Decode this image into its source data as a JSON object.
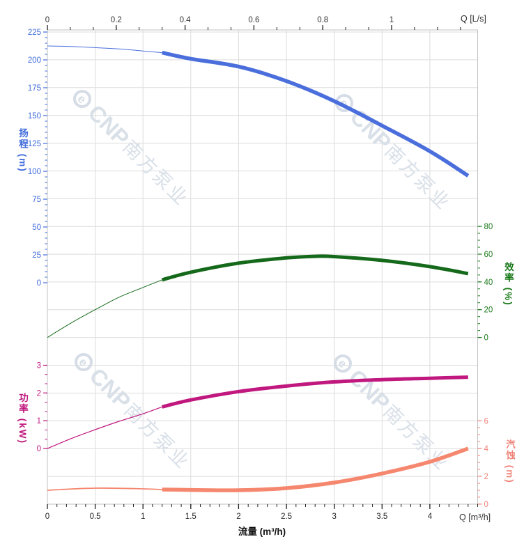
{
  "watermark": {
    "logo": "e",
    "brand": "CNP",
    "brand_cn": "南方泵业"
  },
  "axes": {
    "flow_top": {
      "label": "Q [L/s]",
      "ticks": [
        0,
        0.2,
        0.4,
        0.6,
        0.8,
        1
      ],
      "color": "#333333"
    },
    "flow_bottom": {
      "label": "流量 (m³/h)",
      "corner_label": "Q [m³/h]",
      "ticks": [
        0,
        0.5,
        1,
        1.5,
        2,
        2.5,
        3,
        3.5,
        4
      ],
      "color": "#333333"
    },
    "head": {
      "title": "扬程 (m)",
      "ticks": [
        225,
        200,
        175,
        150,
        125,
        100,
        75,
        50,
        25,
        0
      ],
      "color": "#3f6bdb",
      "range": [
        0,
        225
      ]
    },
    "efficiency": {
      "title": "效率 (%)",
      "ticks": [
        80,
        60,
        40,
        20,
        0
      ],
      "color": "#1a7a1a",
      "range": [
        0,
        80
      ]
    },
    "power": {
      "title": "功率 (kW)",
      "ticks": [
        3,
        2,
        1,
        0
      ],
      "color": "#c0187e",
      "range": [
        0,
        3
      ]
    },
    "npsh": {
      "title": "汽蚀 (m)",
      "ticks": [
        6,
        4,
        2,
        0
      ],
      "color": "#f0847a",
      "range": [
        0,
        6
      ]
    }
  },
  "chart_data": {
    "type": "line",
    "title": "",
    "xlabel": "流量 (m³/h)",
    "x2label": "Q [L/s]",
    "x_range_m3h": [
      0,
      4.5
    ],
    "x2_range_ls": [
      0,
      1.25
    ],
    "grid": "on",
    "duty_split_x": 1.2,
    "series": [
      {
        "name": "head",
        "label": "扬程",
        "unit": "m",
        "color": "#4a6edc",
        "axis": "head",
        "thin_width": 1,
        "thick_width": 5.5,
        "x": [
          0,
          0.25,
          0.5,
          0.75,
          1,
          1.2,
          1.5,
          2,
          2.5,
          3,
          3.5,
          4,
          4.4
        ],
        "y": [
          212.5,
          212,
          211,
          209.8,
          208,
          206.5,
          201,
          194,
          181,
          163,
          141,
          118,
          96
        ]
      },
      {
        "name": "efficiency",
        "label": "效率",
        "unit": "%",
        "color": "#15691a",
        "axis": "eff",
        "thin_width": 1,
        "thick_width": 5,
        "x": [
          0,
          0.25,
          0.5,
          0.75,
          1,
          1.2,
          1.5,
          2,
          2.5,
          2.8,
          3,
          3.5,
          4,
          4.4
        ],
        "y": [
          0,
          10.5,
          20,
          29,
          36,
          41.5,
          47,
          53.5,
          57.3,
          58.4,
          58.2,
          55.5,
          51,
          46
        ]
      },
      {
        "name": "power",
        "label": "功率",
        "unit": "kW",
        "color": "#c0187e",
        "axis": "power",
        "thin_width": 1.2,
        "thick_width": 5,
        "x": [
          0,
          0.25,
          0.5,
          0.75,
          1,
          1.2,
          1.5,
          2,
          2.5,
          3,
          3.5,
          4,
          4.4
        ],
        "y": [
          0,
          0.36,
          0.68,
          0.98,
          1.25,
          1.5,
          1.75,
          2.05,
          2.25,
          2.4,
          2.48,
          2.53,
          2.57
        ]
      },
      {
        "name": "npsh",
        "label": "汽蚀",
        "unit": "m",
        "color": "#f5876f",
        "axis": "npsh",
        "thin_width": 1.8,
        "thick_width": 5.5,
        "x": [
          0,
          0.5,
          1,
          1.2,
          1.5,
          2,
          2.5,
          3,
          3.5,
          4,
          4.4
        ],
        "y": [
          1.0,
          1.15,
          1.1,
          1.05,
          1.02,
          1.0,
          1.15,
          1.55,
          2.2,
          3.05,
          4.0
        ]
      }
    ]
  }
}
